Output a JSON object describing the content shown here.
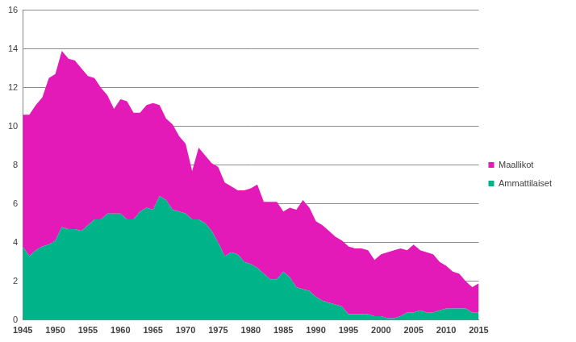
{
  "chart_data": {
    "type": "area",
    "stacked": true,
    "grid": true,
    "legend": "right",
    "x": [
      1945,
      1946,
      1947,
      1948,
      1949,
      1950,
      1951,
      1952,
      1953,
      1954,
      1955,
      1956,
      1957,
      1958,
      1959,
      1960,
      1961,
      1962,
      1963,
      1964,
      1965,
      1966,
      1967,
      1968,
      1969,
      1970,
      1971,
      1972,
      1973,
      1974,
      1975,
      1976,
      1977,
      1978,
      1979,
      1980,
      1981,
      1982,
      1983,
      1984,
      1985,
      1986,
      1987,
      1988,
      1989,
      1990,
      1991,
      1992,
      1993,
      1994,
      1995,
      1996,
      1997,
      1998,
      1999,
      2000,
      2001,
      2002,
      2003,
      2004,
      2005,
      2006,
      2007,
      2008,
      2009,
      2010,
      2011,
      2012,
      2013,
      2014,
      2015
    ],
    "xlim": [
      1945,
      2015
    ],
    "xticks": [
      1945,
      1950,
      1955,
      1960,
      1965,
      1970,
      1975,
      1980,
      1985,
      1990,
      1995,
      2000,
      2005,
      2010,
      2015
    ],
    "ylim": [
      0,
      16
    ],
    "yticks": [
      0,
      2,
      4,
      6,
      8,
      10,
      12,
      14,
      16
    ],
    "series": [
      {
        "name": "Ammattilaiset",
        "color": "#00b388",
        "values": [
          3.8,
          3.3,
          3.6,
          3.8,
          3.9,
          4.1,
          4.8,
          4.7,
          4.7,
          4.6,
          4.9,
          5.2,
          5.2,
          5.5,
          5.5,
          5.5,
          5.2,
          5.2,
          5.6,
          5.8,
          5.7,
          6.4,
          6.2,
          5.7,
          5.6,
          5.5,
          5.2,
          5.2,
          5.0,
          4.6,
          4.0,
          3.3,
          3.5,
          3.4,
          3.0,
          2.9,
          2.7,
          2.4,
          2.1,
          2.1,
          2.5,
          2.2,
          1.7,
          1.6,
          1.5,
          1.2,
          1.0,
          0.9,
          0.8,
          0.7,
          0.3,
          0.3,
          0.3,
          0.3,
          0.2,
          0.2,
          0.1,
          0.1,
          0.2,
          0.4,
          0.4,
          0.5,
          0.4,
          0.4,
          0.5,
          0.6,
          0.6,
          0.6,
          0.6,
          0.4,
          0.4
        ]
      },
      {
        "name": "Maallikot",
        "color": "#e31ab8",
        "values": [
          6.8,
          7.3,
          7.5,
          7.7,
          8.6,
          8.6,
          9.1,
          8.8,
          8.7,
          8.4,
          7.7,
          7.3,
          6.8,
          6.1,
          5.4,
          5.9,
          6.1,
          5.5,
          5.1,
          5.3,
          5.5,
          4.7,
          4.2,
          4.4,
          3.9,
          3.6,
          2.5,
          3.7,
          3.5,
          3.5,
          3.9,
          3.8,
          3.4,
          3.3,
          3.7,
          3.9,
          4.3,
          3.7,
          4.0,
          4.0,
          3.1,
          3.6,
          4.0,
          4.6,
          4.3,
          3.9,
          3.9,
          3.7,
          3.5,
          3.4,
          3.5,
          3.4,
          3.4,
          3.3,
          2.9,
          3.2,
          3.4,
          3.5,
          3.5,
          3.2,
          3.5,
          3.1,
          3.1,
          3.0,
          2.5,
          2.2,
          1.9,
          1.8,
          1.4,
          1.3,
          1.5
        ]
      }
    ]
  }
}
